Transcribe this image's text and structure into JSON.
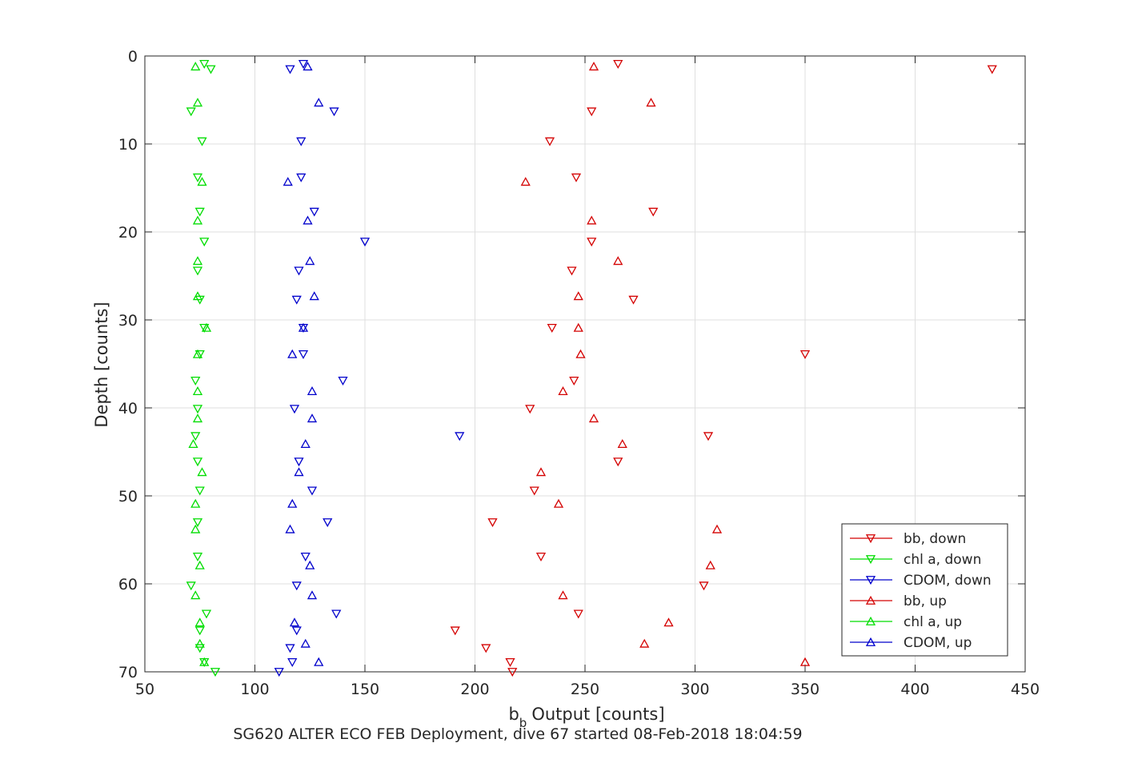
{
  "chart_data": {
    "type": "scatter",
    "xlabel": "Output [counts]",
    "xlabel_prefix": "b",
    "xlabel_sub": "b",
    "ylabel": "Depth [counts]",
    "caption": "SG620 ALTER ECO FEB Deployment, dive 67 started 08-Feb-2018 18:04:59",
    "xlim": [
      50,
      450
    ],
    "ylim": [
      0,
      70
    ],
    "y_reversed": true,
    "xticks": [
      50,
      100,
      150,
      200,
      250,
      300,
      350,
      400,
      450
    ],
    "yticks": [
      0,
      10,
      20,
      30,
      40,
      50,
      60,
      70
    ],
    "grid": true,
    "legend_position": "bottom-right",
    "series": [
      {
        "name": "bb, down",
        "color": "#d40000",
        "marker": "triangle-down",
        "points": [
          [
            265,
            0.9
          ],
          [
            435,
            1.5
          ],
          [
            253,
            6.3
          ],
          [
            234,
            9.7
          ],
          [
            246,
            13.8
          ],
          [
            281,
            17.7
          ],
          [
            253,
            21.1
          ],
          [
            244,
            24.4
          ],
          [
            272,
            27.7
          ],
          [
            235,
            30.9
          ],
          [
            350,
            33.9
          ],
          [
            245,
            36.9
          ],
          [
            225,
            40.1
          ],
          [
            306,
            43.2
          ],
          [
            265,
            46.1
          ],
          [
            227,
            49.4
          ],
          [
            208,
            53.0
          ],
          [
            230,
            56.9
          ],
          [
            304,
            60.2
          ],
          [
            247,
            63.4
          ],
          [
            191,
            65.3
          ],
          [
            205,
            67.3
          ],
          [
            216,
            68.9
          ],
          [
            217,
            70.0
          ]
        ]
      },
      {
        "name": "chl a, down",
        "color": "#00dd00",
        "marker": "triangle-down",
        "points": [
          [
            77,
            0.9
          ],
          [
            80,
            1.5
          ],
          [
            71,
            6.3
          ],
          [
            76,
            9.7
          ],
          [
            74,
            13.8
          ],
          [
            75,
            17.7
          ],
          [
            77,
            21.1
          ],
          [
            74,
            24.4
          ],
          [
            75,
            27.7
          ],
          [
            77,
            30.9
          ],
          [
            75,
            33.9
          ],
          [
            73,
            36.9
          ],
          [
            74,
            40.1
          ],
          [
            73,
            43.2
          ],
          [
            74,
            46.1
          ],
          [
            75,
            49.4
          ],
          [
            74,
            53.0
          ],
          [
            74,
            56.9
          ],
          [
            71,
            60.2
          ],
          [
            78,
            63.4
          ],
          [
            75,
            65.3
          ],
          [
            75,
            67.3
          ],
          [
            77,
            68.9
          ],
          [
            82,
            70.0
          ]
        ]
      },
      {
        "name": "CDOM, down",
        "color": "#0000cc",
        "marker": "triangle-down",
        "points": [
          [
            122,
            0.9
          ],
          [
            116,
            1.5
          ],
          [
            136,
            6.3
          ],
          [
            121,
            9.7
          ],
          [
            121,
            13.8
          ],
          [
            127,
            17.7
          ],
          [
            150,
            21.1
          ],
          [
            120,
            24.4
          ],
          [
            119,
            27.7
          ],
          [
            122,
            30.9
          ],
          [
            122,
            33.9
          ],
          [
            140,
            36.9
          ],
          [
            118,
            40.1
          ],
          [
            193,
            43.2
          ],
          [
            120,
            46.1
          ],
          [
            126,
            49.4
          ],
          [
            133,
            53.0
          ],
          [
            123,
            56.9
          ],
          [
            119,
            60.2
          ],
          [
            137,
            63.4
          ],
          [
            119,
            65.3
          ],
          [
            116,
            67.3
          ],
          [
            117,
            68.9
          ],
          [
            111,
            70.0
          ]
        ]
      },
      {
        "name": "bb, up",
        "color": "#d40000",
        "marker": "triangle-up",
        "points": [
          [
            254,
            1.2
          ],
          [
            280,
            5.3
          ],
          [
            223,
            14.3
          ],
          [
            253,
            18.7
          ],
          [
            265,
            23.3
          ],
          [
            247,
            27.3
          ],
          [
            247,
            30.9
          ],
          [
            248,
            33.9
          ],
          [
            240,
            38.1
          ],
          [
            254,
            41.2
          ],
          [
            267,
            44.1
          ],
          [
            230,
            47.3
          ],
          [
            238,
            50.9
          ],
          [
            310,
            53.8
          ],
          [
            307,
            57.9
          ],
          [
            240,
            61.3
          ],
          [
            288,
            64.4
          ],
          [
            277,
            66.8
          ],
          [
            350,
            68.9
          ]
        ]
      },
      {
        "name": "chl a, up",
        "color": "#00dd00",
        "marker": "triangle-up",
        "points": [
          [
            73,
            1.2
          ],
          [
            74,
            5.3
          ],
          [
            76,
            14.3
          ],
          [
            74,
            18.7
          ],
          [
            74,
            23.3
          ],
          [
            74,
            27.3
          ],
          [
            78,
            30.9
          ],
          [
            74,
            33.9
          ],
          [
            74,
            38.1
          ],
          [
            74,
            41.2
          ],
          [
            72,
            44.1
          ],
          [
            76,
            47.3
          ],
          [
            73,
            50.9
          ],
          [
            73,
            53.8
          ],
          [
            75,
            57.9
          ],
          [
            73,
            61.3
          ],
          [
            75,
            64.4
          ],
          [
            75,
            66.8
          ],
          [
            77,
            68.9
          ]
        ]
      },
      {
        "name": "CDOM, up",
        "color": "#0000cc",
        "marker": "triangle-up",
        "points": [
          [
            124,
            1.2
          ],
          [
            129,
            5.3
          ],
          [
            115,
            14.3
          ],
          [
            124,
            18.7
          ],
          [
            125,
            23.3
          ],
          [
            127,
            27.3
          ],
          [
            122,
            30.9
          ],
          [
            117,
            33.9
          ],
          [
            126,
            38.1
          ],
          [
            126,
            41.2
          ],
          [
            123,
            44.1
          ],
          [
            120,
            47.3
          ],
          [
            117,
            50.9
          ],
          [
            116,
            53.8
          ],
          [
            125,
            57.9
          ],
          [
            126,
            61.3
          ],
          [
            118,
            64.4
          ],
          [
            123,
            66.8
          ],
          [
            129,
            68.9
          ]
        ]
      }
    ]
  }
}
